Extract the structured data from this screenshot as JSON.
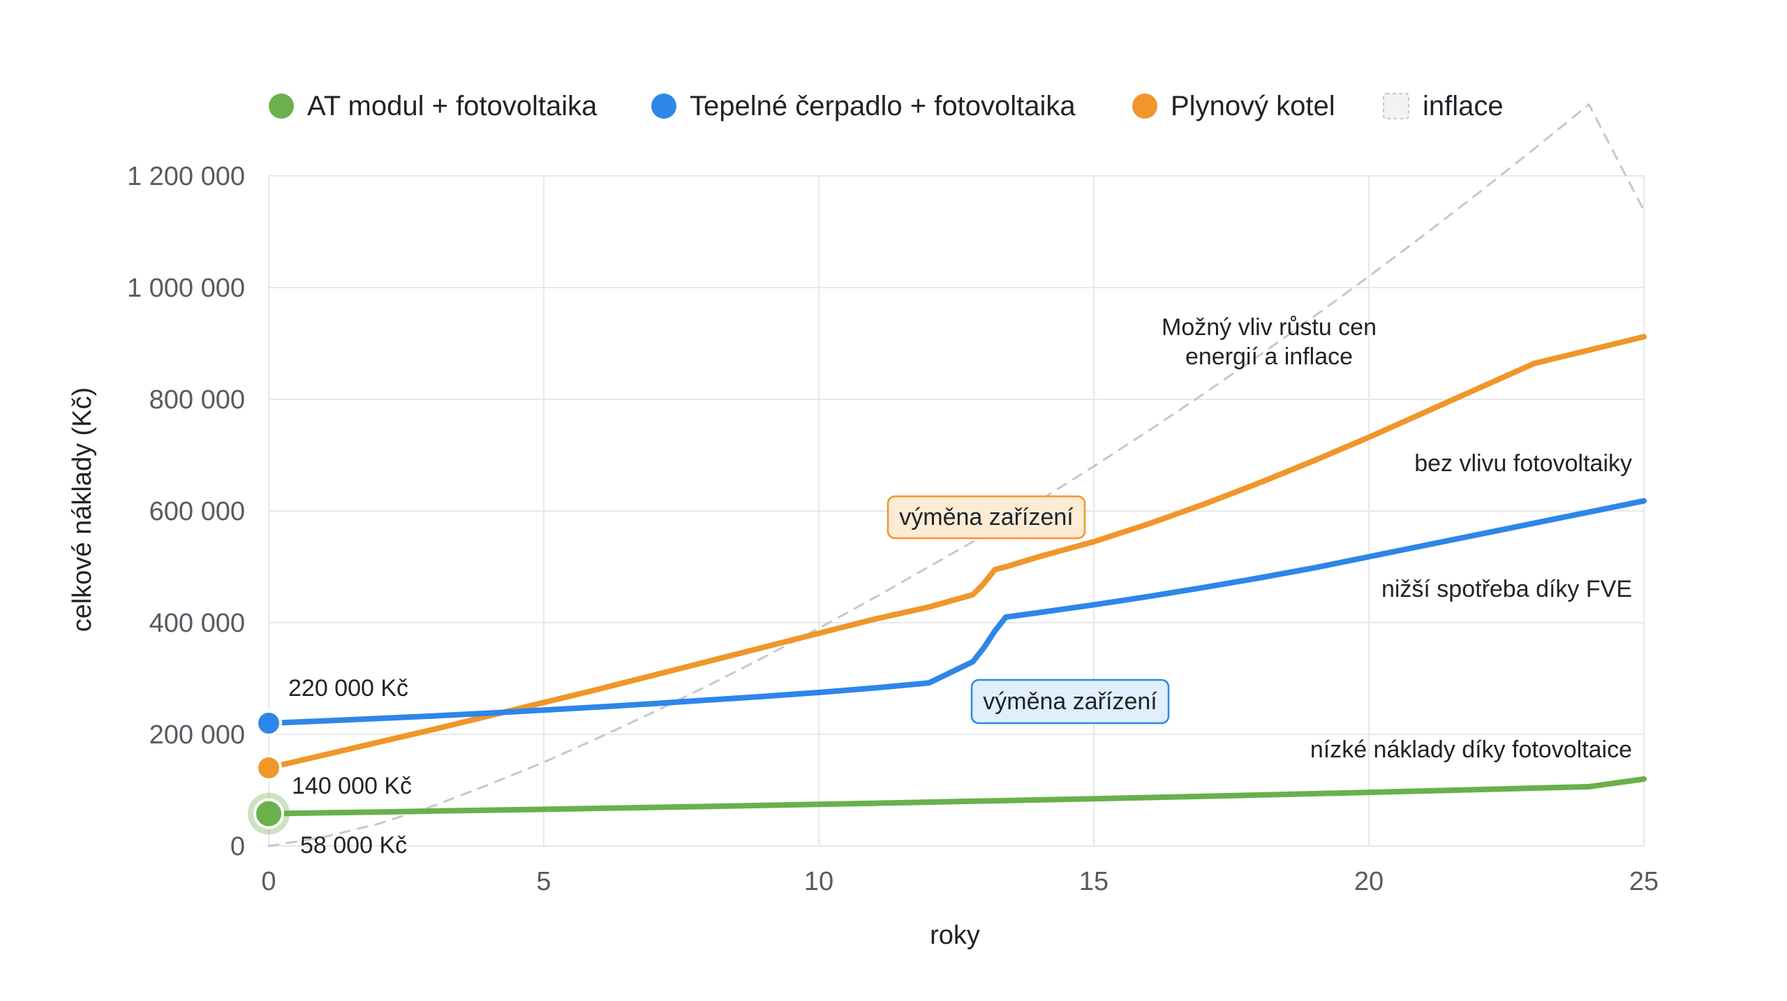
{
  "chart_data": {
    "type": "line",
    "x": [
      0,
      1,
      2,
      3,
      4,
      5,
      6,
      7,
      8,
      9,
      10,
      11,
      12,
      12.8,
      13.0,
      13.2,
      13.4,
      14,
      15,
      16,
      17,
      18,
      19,
      20,
      21,
      22,
      23,
      24,
      25
    ],
    "series": [
      {
        "name": "AT modul + fotovoltaika",
        "color": "#6ab04c",
        "values": [
          58000,
          59500,
          61000,
          62600,
          64200,
          65800,
          67500,
          69200,
          71000,
          72800,
          74700,
          76600,
          78600,
          80200,
          80600,
          81000,
          81400,
          82600,
          84700,
          86900,
          89100,
          91400,
          93700,
          96100,
          98600,
          101100,
          103700,
          106300,
          120000
        ]
      },
      {
        "name": "Tepelné čerpadlo + fotovoltaika",
        "color": "#2e86e8",
        "values": [
          220000,
          224000,
          228500,
          233000,
          238000,
          243500,
          249000,
          255000,
          261500,
          268000,
          275000,
          283000,
          292000,
          330000,
          355000,
          385000,
          410000,
          418000,
          432000,
          447000,
          463000,
          480000,
          498000,
          518000,
          538000,
          558000,
          578000,
          598000,
          618000
        ]
      },
      {
        "name": "Plynový kotel",
        "color": "#f0962a",
        "values": [
          140000,
          163000,
          186000,
          209000,
          233000,
          257000,
          281000,
          306000,
          331000,
          356000,
          381000,
          406000,
          428000,
          450000,
          470000,
          495000,
          500000,
          518000,
          545000,
          577000,
          612000,
          650000,
          690000,
          732000,
          776000,
          820000,
          864000,
          888000,
          912000
        ]
      },
      {
        "name": "inflace",
        "color": "#c4c8ce",
        "dashed": true,
        "values": [
          0,
          16000,
          40000,
          72000,
          110000,
          150000,
          194000,
          240000,
          288000,
          338000,
          390000,
          444000,
          500000,
          545000,
          557000,
          569000,
          581000,
          618000,
          680000,
          744000,
          810000,
          878000,
          948000,
          1020000,
          1094000,
          1170000,
          1248000,
          1328000,
          1138000
        ]
      }
    ],
    "xlabel": "roky",
    "ylabel": "celkové náklady (Kč)",
    "xlim": [
      0,
      25
    ],
    "ylim": [
      0,
      1200000
    ],
    "x_ticks": [
      0,
      5,
      10,
      15,
      20,
      25
    ],
    "y_ticks": [
      0,
      200000,
      400000,
      600000,
      800000,
      1000000,
      1200000
    ],
    "y_tick_labels": [
      "0",
      "200 000",
      "400 000",
      "600 000",
      "800 000",
      "1 000 000",
      "1 200 000"
    ],
    "grid": true,
    "legend_position": "top",
    "start_labels": [
      "220 000 Kč",
      "140 000 Kč",
      "58 000 Kč"
    ],
    "annotations": {
      "inflation_line1": "Možný vliv růstu cen",
      "inflation_line2": "energií a inflace",
      "gas": "bez vlivu fotovoltaiky",
      "heat_pump": "nižší spotřeba díky FVE",
      "at_module": "nízké náklady díky fotovoltaice"
    },
    "callouts": {
      "gas_replacement": "výměna zařízení",
      "heat_pump_replacement": "výměna zařízení"
    }
  }
}
